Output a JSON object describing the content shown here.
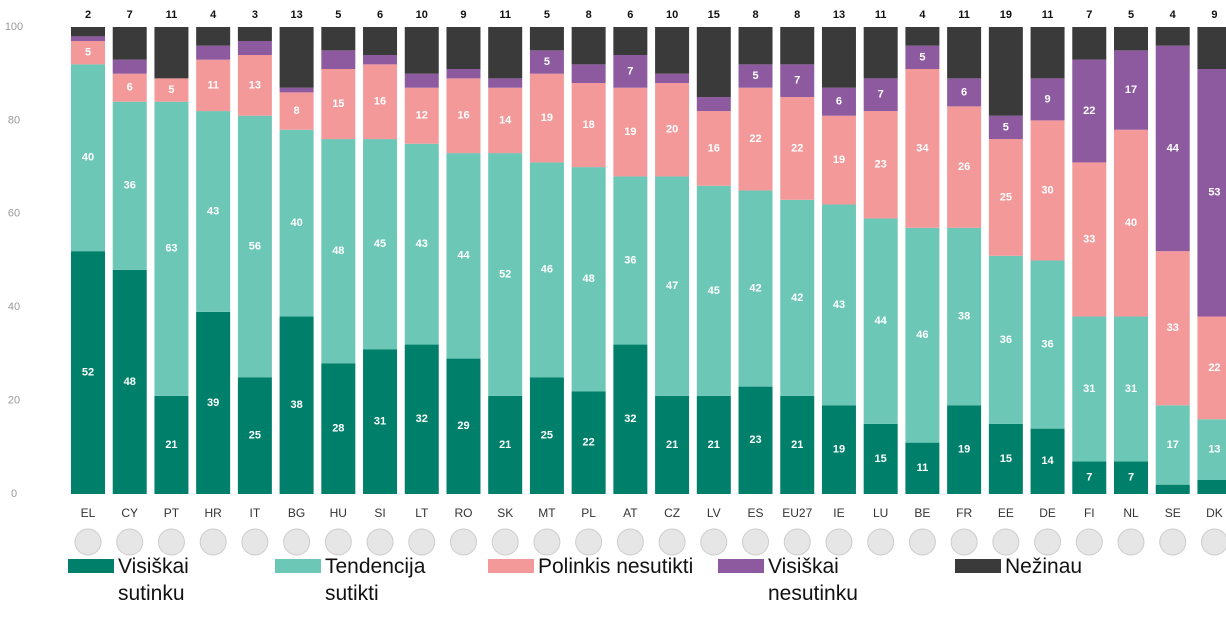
{
  "chart_data": {
    "type": "stacked_bar",
    "categories": [
      "EL",
      "CY",
      "PT",
      "HR",
      "IT",
      "BG",
      "HU",
      "SI",
      "LT",
      "RO",
      "SK",
      "MT",
      "PL",
      "AT",
      "CZ",
      "LV",
      "ES",
      "EU27",
      "IE",
      "LU",
      "BE",
      "FR",
      "EE",
      "DE",
      "FI",
      "NL",
      "SE",
      "DK"
    ],
    "series": [
      {
        "name": "Visiškai sutinku",
        "color": "#00806a",
        "values": [
          52,
          48,
          21,
          39,
          25,
          38,
          28,
          31,
          32,
          29,
          21,
          25,
          22,
          32,
          21,
          21,
          23,
          21,
          19,
          15,
          11,
          19,
          15,
          14,
          7,
          7,
          2,
          3
        ]
      },
      {
        "name": "Tendencija sutikti",
        "color": "#6cc7b7",
        "values": [
          40,
          36,
          63,
          43,
          56,
          40,
          48,
          45,
          43,
          44,
          52,
          46,
          48,
          36,
          47,
          45,
          42,
          42,
          43,
          44,
          46,
          38,
          36,
          36,
          31,
          31,
          17,
          13
        ]
      },
      {
        "name": "Polinkis nesutikti",
        "color": "#f4999a",
        "values": [
          5,
          6,
          5,
          11,
          13,
          8,
          15,
          16,
          12,
          16,
          14,
          19,
          18,
          19,
          20,
          16,
          22,
          22,
          19,
          23,
          34,
          26,
          25,
          30,
          33,
          40,
          33,
          22
        ]
      },
      {
        "name": "Visiškai nesutinku",
        "color": "#8e5a9f",
        "values": [
          1,
          3,
          0,
          3,
          3,
          1,
          4,
          2,
          3,
          2,
          2,
          5,
          4,
          7,
          2,
          3,
          5,
          7,
          6,
          7,
          5,
          6,
          5,
          9,
          22,
          17,
          44,
          53
        ]
      },
      {
        "name": "Nežinau",
        "color": "#3a3a3a",
        "values": [
          2,
          7,
          11,
          4,
          3,
          13,
          5,
          6,
          10,
          9,
          11,
          5,
          8,
          6,
          10,
          15,
          8,
          8,
          13,
          11,
          4,
          11,
          19,
          11,
          7,
          5,
          4,
          9
        ]
      }
    ],
    "ylim": [
      0,
      100
    ],
    "yticks": [
      0,
      20,
      40,
      60,
      80,
      100
    ],
    "grid": false
  }
}
